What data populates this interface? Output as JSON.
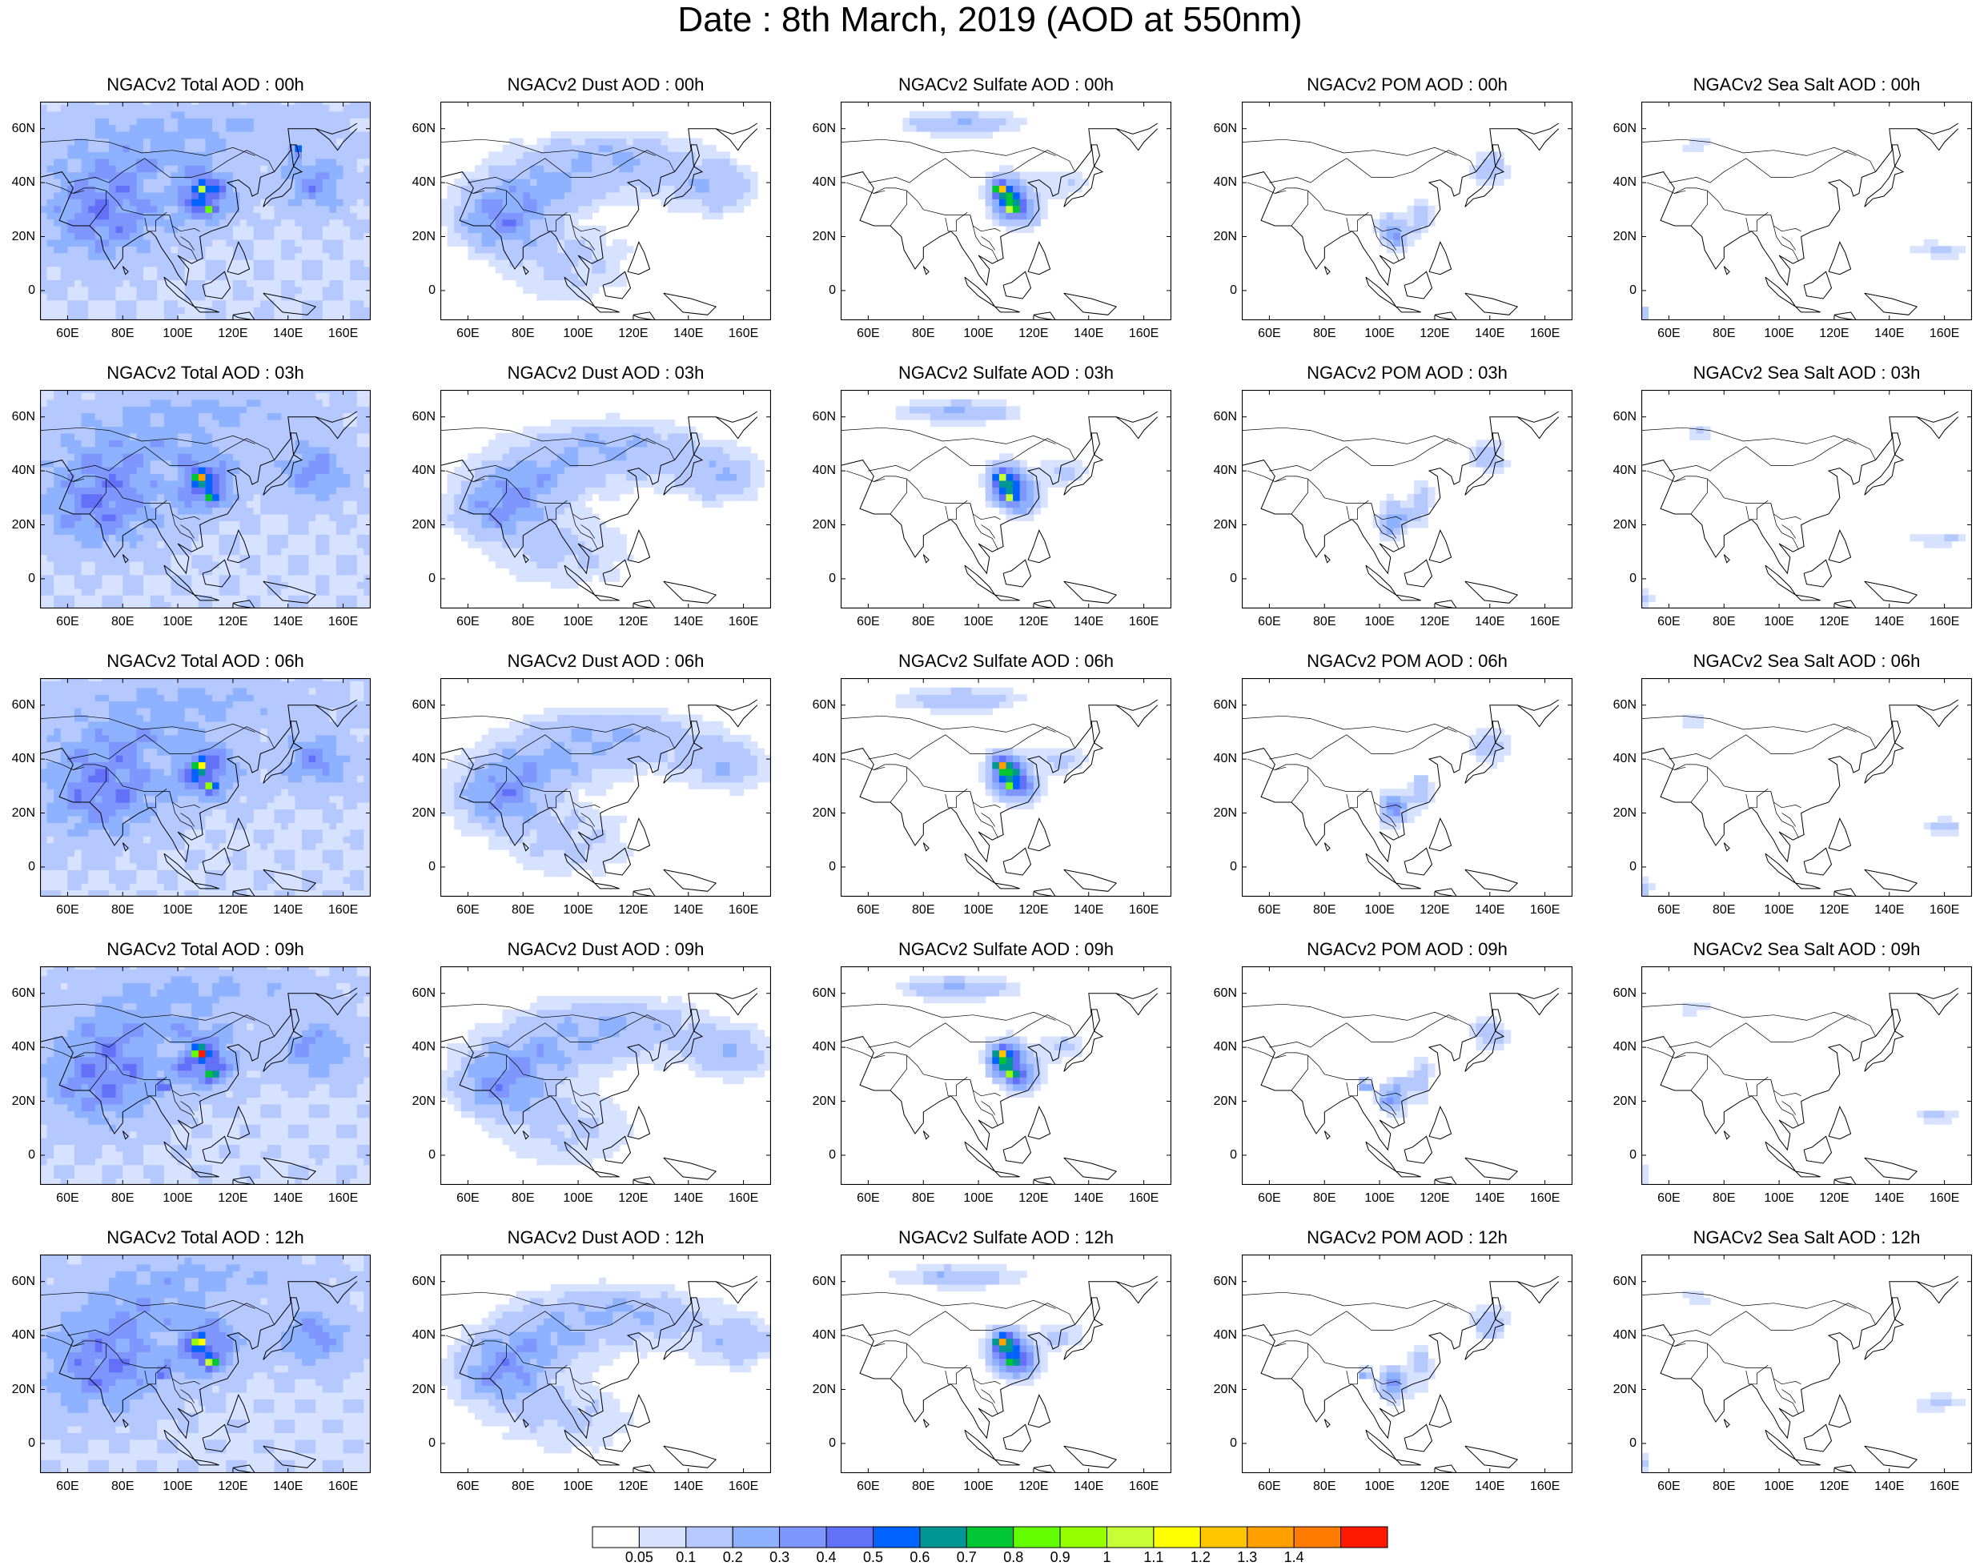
{
  "title": "Date : 8th March, 2019 (AOD at 550nm)",
  "map": {
    "lon_range": [
      50,
      170
    ],
    "lat_range": [
      -11,
      70
    ],
    "x_ticks": [
      "60E",
      "80E",
      "100E",
      "120E",
      "140E",
      "160E"
    ],
    "y_ticks": [
      "60N",
      "40N",
      "20N",
      "0"
    ],
    "x_tick_values": [
      60,
      80,
      100,
      120,
      140,
      160
    ],
    "y_tick_values": [
      60,
      40,
      20,
      0
    ]
  },
  "panels": [
    [
      "NGACv2 Total AOD : 00h",
      "NGACv2 Dust AOD : 00h",
      "NGACv2 Sulfate AOD : 00h",
      "NGACv2 POM AOD : 00h",
      "NGACv2 Sea Salt AOD : 00h"
    ],
    [
      "NGACv2 Total AOD : 03h",
      "NGACv2 Dust AOD : 03h",
      "NGACv2 Sulfate AOD : 03h",
      "NGACv2 POM AOD : 03h",
      "NGACv2 Sea Salt AOD : 03h"
    ],
    [
      "NGACv2 Total AOD : 06h",
      "NGACv2 Dust AOD : 06h",
      "NGACv2 Sulfate AOD : 06h",
      "NGACv2 POM AOD : 06h",
      "NGACv2 Sea Salt AOD : 06h"
    ],
    [
      "NGACv2 Total AOD : 09h",
      "NGACv2 Dust AOD : 09h",
      "NGACv2 Sulfate AOD : 09h",
      "NGACv2 POM AOD : 09h",
      "NGACv2 Sea Salt  AOD : 09h"
    ],
    [
      "NGACv2 Total AOD  : 12h",
      "NGACv2 Dust AOD : 12h",
      "NGACv2 Sulfate AOD : 12h",
      "NGACv2 POM  AOD : 12h",
      "NGACv2 Sea Salt  AOD : 12h"
    ]
  ],
  "colorbar": {
    "labels": [
      "0.05",
      "0.1",
      "0.2",
      "0.3",
      "0.4",
      "0.5",
      "0.6",
      "0.7",
      "0.8",
      "0.9",
      "1",
      "1.1",
      "1.2",
      "1.3",
      "1.4"
    ],
    "colors": [
      "#ffffff",
      "#d6e2ff",
      "#b5c9ff",
      "#8eb2ff",
      "#7f96ff",
      "#6370f8",
      "#0063ff",
      "#009696",
      "#00c633",
      "#63ff00",
      "#96ff00",
      "#c6ff33",
      "#ffff00",
      "#ffc600",
      "#ffa000",
      "#ff7c00",
      "#ff1900"
    ]
  }
}
